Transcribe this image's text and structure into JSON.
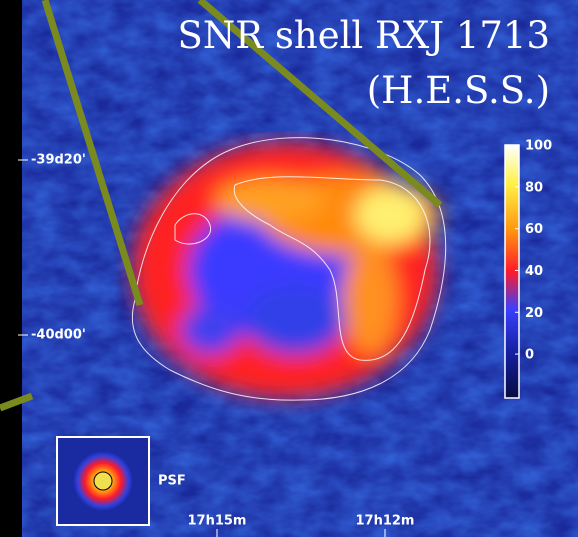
{
  "title": {
    "line1": "SNR shell RXJ 1713",
    "line2": "(H.E.S.S.)"
  },
  "axes": {
    "dec_labels": [
      "-39d20'",
      "-40d00'"
    ],
    "ra_labels": [
      "17h15m",
      "17h12m"
    ]
  },
  "colorbar": {
    "range": [
      -21,
      100
    ],
    "ticks": [
      100,
      80,
      60,
      40,
      20,
      0
    ]
  },
  "psf_label": "PSF"
}
